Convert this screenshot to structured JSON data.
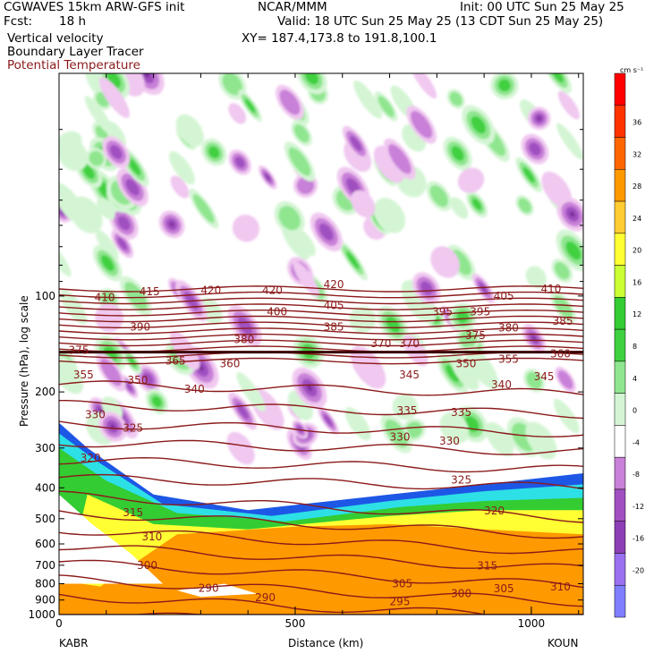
{
  "header": {
    "title_left": "CGWAVES 15km ARW-GFS init",
    "center": "NCAR/MMM",
    "init": "Init: 00 UTC Sun 25 May 25",
    "fcst_label": "Fcst:",
    "fcst_value": "18 h",
    "valid": "Valid: 18 UTC Sun 25 May 25 (13 CDT Sun 25 May 25)",
    "field1": "Vertical velocity",
    "field2": "Boundary Layer Tracer",
    "field3": "Potential Temperature",
    "xy": "XY= 187.4,173.8 to 191.8,100.1"
  },
  "colors": {
    "theta_contour": "#8b1a1a",
    "tracer_blue": "#1d57e6",
    "tracer_cyan": "#2de0e6",
    "tracer_green": "#33cc33",
    "tracer_yellow": "#ffff33",
    "tracer_orange": "#ff9900"
  },
  "chart_data": {
    "type": "heatmap",
    "title": "Vertical velocity",
    "xlabel": "Distance (km)",
    "ylabel": "Pressure (hPa), log scale",
    "xlim": [
      0,
      1110
    ],
    "x_ticks": [
      "0",
      "500",
      "1000"
    ],
    "y_scale": "log",
    "ylim": [
      1000,
      20
    ],
    "y_ticks": [
      "100",
      "200",
      "300",
      "400",
      "500",
      "600",
      "700",
      "800",
      "900",
      "1000"
    ],
    "x_endpoints": [
      "KABR",
      "KOUN"
    ],
    "colorbar": {
      "units": "cm s⁻¹",
      "levels": [
        -20,
        -16,
        -12,
        -8,
        -4,
        0,
        4,
        8,
        12,
        16,
        20,
        24,
        28,
        32,
        36
      ],
      "labels": [
        "36",
        "32",
        "28",
        "24",
        "20",
        "16",
        "12",
        "8",
        "4",
        "0",
        "-4",
        "-8",
        "-12",
        "-16",
        "-20"
      ],
      "colors": [
        "#7f7fff",
        "#9a6ff0",
        "#8e3fb5",
        "#a050c0",
        "#c880d8",
        "#ffffff",
        "#d4f5d4",
        "#8fe68f",
        "#3fd03f",
        "#33cc33",
        "#ccff33",
        "#ffff33",
        "#ffcc33",
        "#ff9900",
        "#ff6600",
        "#ff3300",
        "#ff0000"
      ]
    },
    "theta_labels": [
      {
        "x": 75,
        "p": 101,
        "v": "410"
      },
      {
        "x": 170,
        "p": 97,
        "v": "415"
      },
      {
        "x": 300,
        "p": 96,
        "v": "420"
      },
      {
        "x": 430,
        "p": 96,
        "v": "420"
      },
      {
        "x": 560,
        "p": 92,
        "v": "420"
      },
      {
        "x": 920,
        "p": 100,
        "v": "405"
      },
      {
        "x": 1020,
        "p": 95,
        "v": "410"
      },
      {
        "x": 560,
        "p": 107,
        "v": "405"
      },
      {
        "x": 440,
        "p": 112,
        "v": "400"
      },
      {
        "x": 790,
        "p": 112,
        "v": "395"
      },
      {
        "x": 870,
        "p": 112,
        "v": "395"
      },
      {
        "x": 150,
        "p": 125,
        "v": "390"
      },
      {
        "x": 560,
        "p": 125,
        "v": "385"
      },
      {
        "x": 1045,
        "p": 120,
        "v": "385"
      },
      {
        "x": 930,
        "p": 126,
        "v": "380"
      },
      {
        "x": 370,
        "p": 137,
        "v": "380"
      },
      {
        "x": 860,
        "p": 133,
        "v": "375"
      },
      {
        "x": 20,
        "p": 148,
        "v": "375"
      },
      {
        "x": 720,
        "p": 141,
        "v": "370"
      },
      {
        "x": 660,
        "p": 141,
        "v": "370"
      },
      {
        "x": 225,
        "p": 160,
        "v": "365"
      },
      {
        "x": 340,
        "p": 163,
        "v": "360"
      },
      {
        "x": 1040,
        "p": 152,
        "v": "360"
      },
      {
        "x": 930,
        "p": 158,
        "v": "355"
      },
      {
        "x": 30,
        "p": 177,
        "v": "355"
      },
      {
        "x": 840,
        "p": 163,
        "v": "350"
      },
      {
        "x": 145,
        "p": 184,
        "v": "350"
      },
      {
        "x": 720,
        "p": 177,
        "v": "345"
      },
      {
        "x": 1005,
        "p": 179,
        "v": "345"
      },
      {
        "x": 915,
        "p": 190,
        "v": "340"
      },
      {
        "x": 265,
        "p": 196,
        "v": "340"
      },
      {
        "x": 715,
        "p": 229,
        "v": "335"
      },
      {
        "x": 830,
        "p": 232,
        "v": "335"
      },
      {
        "x": 55,
        "p": 236,
        "v": "330"
      },
      {
        "x": 700,
        "p": 277,
        "v": "330"
      },
      {
        "x": 805,
        "p": 285,
        "v": "330"
      },
      {
        "x": 135,
        "p": 260,
        "v": "325"
      },
      {
        "x": 830,
        "p": 378,
        "v": "325"
      },
      {
        "x": 45,
        "p": 323,
        "v": "320"
      },
      {
        "x": 900,
        "p": 473,
        "v": "320"
      },
      {
        "x": 135,
        "p": 478,
        "v": "315"
      },
      {
        "x": 885,
        "p": 703,
        "v": "315"
      },
      {
        "x": 175,
        "p": 570,
        "v": "310"
      },
      {
        "x": 1040,
        "p": 818,
        "v": "310"
      },
      {
        "x": 165,
        "p": 700,
        "v": "300"
      },
      {
        "x": 705,
        "p": 800,
        "v": "305"
      },
      {
        "x": 920,
        "p": 830,
        "v": "305"
      },
      {
        "x": 830,
        "p": 858,
        "v": "300"
      },
      {
        "x": 295,
        "p": 826,
        "v": "290"
      },
      {
        "x": 415,
        "p": 885,
        "v": "290"
      },
      {
        "x": 700,
        "p": 910,
        "v": "295"
      }
    ]
  }
}
